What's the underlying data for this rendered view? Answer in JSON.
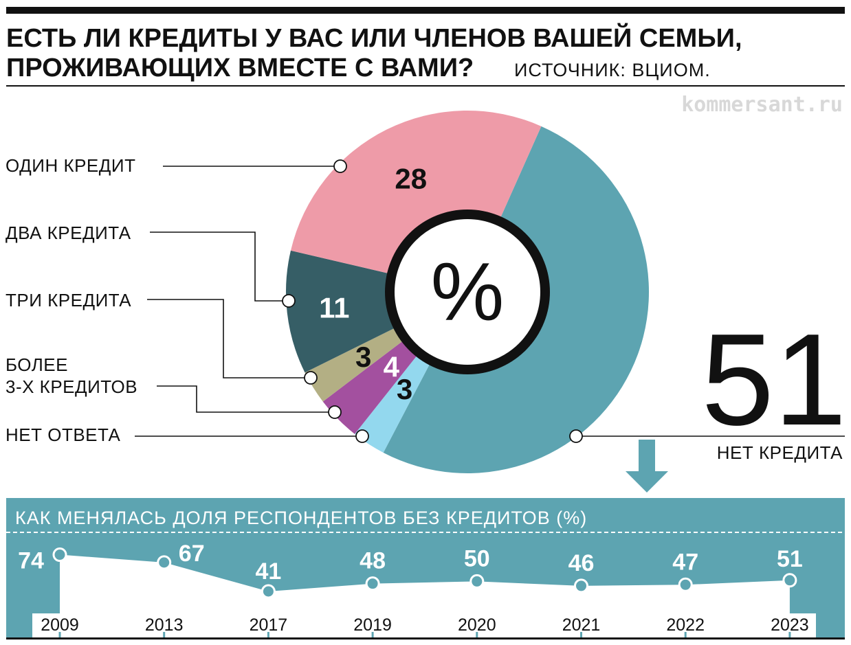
{
  "header": {
    "title_line1": "ЕСТЬ ЛИ КРЕДИТЫ У ВАС ИЛИ ЧЛЕНОВ ВАШЕЙ СЕМЬИ,",
    "title_line2": "ПРОЖИВАЮЩИХ ВМЕСТЕ С ВАМИ?",
    "source": "ИСТОЧНИК: ВЦИОМ.",
    "watermark": "kommersant.ru"
  },
  "colors": {
    "teal": "#5da4b1",
    "pink": "#ee9ba8",
    "dark_teal": "#365e66",
    "olive": "#b3af84",
    "purple": "#a3509f",
    "light_blue": "#93d8ee",
    "black": "#111111"
  },
  "chart_data": [
    {
      "type": "pie",
      "center_label": "%",
      "slices": [
        {
          "label": "ОДИН КРЕДИТ",
          "value": 28,
          "color": "#ee9ba8",
          "value_color": "#111111"
        },
        {
          "label": "ДВА КРЕДИТА",
          "value": 11,
          "color": "#365e66",
          "value_color": "#ffffff"
        },
        {
          "label": "ТРИ КРЕДИТА",
          "value": 3,
          "color": "#b3af84",
          "value_color": "#111111"
        },
        {
          "label": "БОЛЕЕ\n3-Х КРЕДИТОВ",
          "value": 4,
          "color": "#a3509f",
          "value_color": "#ffffff"
        },
        {
          "label": "НЕТ ОТВЕТА",
          "value": 3,
          "color": "#93d8ee",
          "value_color": "#111111"
        },
        {
          "label": "НЕТ КРЕДИТА",
          "value": 51,
          "color": "#5da4b1",
          "value_color": "#111111"
        }
      ]
    },
    {
      "type": "line",
      "title": "КАК МЕНЯЛАСЬ ДОЛЯ РЕСПОНДЕНТОВ БЕЗ КРЕДИТОВ (%)",
      "x": [
        "2009",
        "2013",
        "2017",
        "2019",
        "2020",
        "2021",
        "2022",
        "2023"
      ],
      "values": [
        74,
        67,
        41,
        48,
        50,
        46,
        47,
        51
      ],
      "color": "#5da4b1"
    }
  ]
}
